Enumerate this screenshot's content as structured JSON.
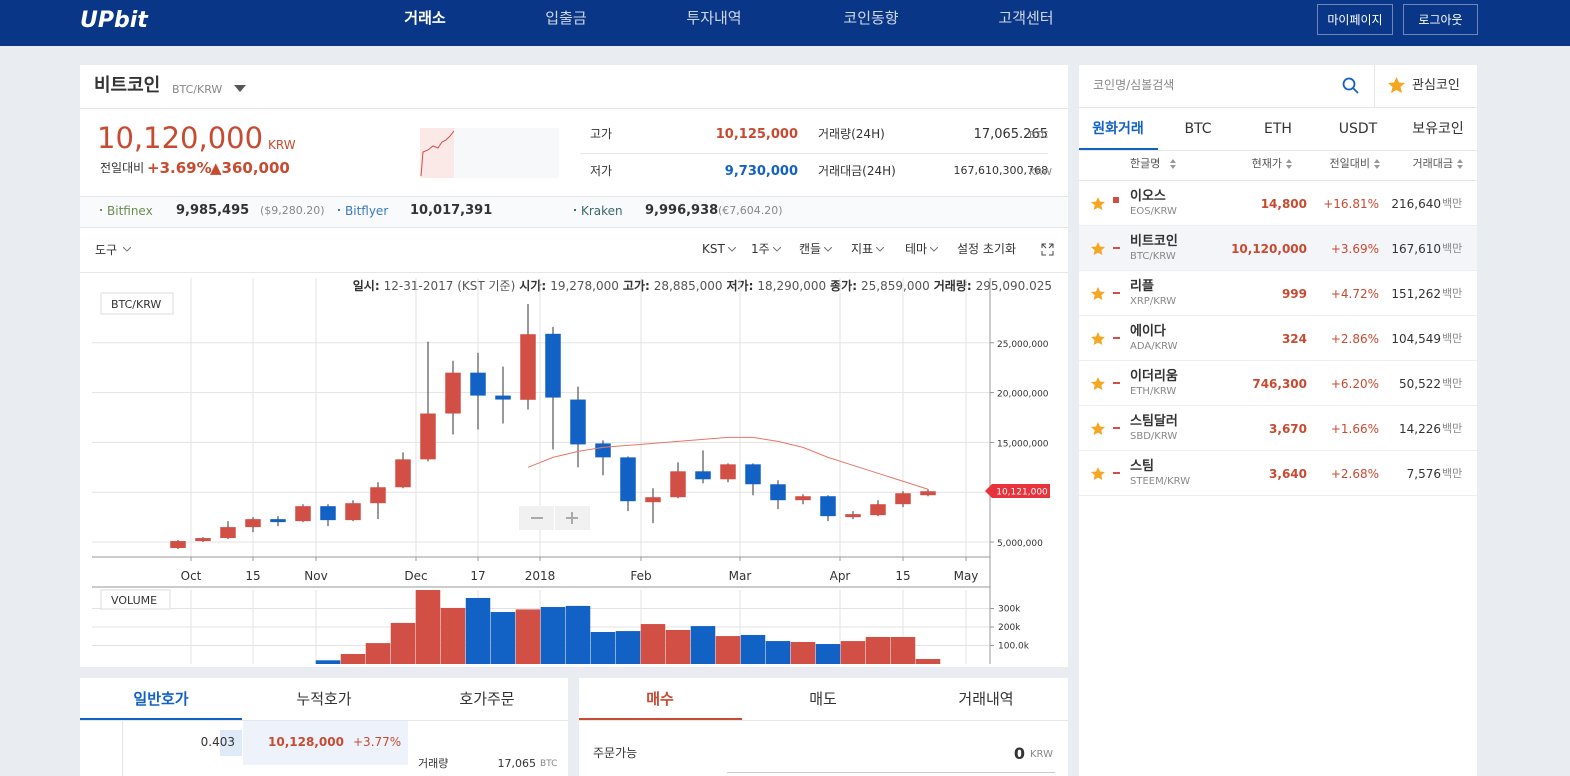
{
  "header": {
    "logo": "UPbit",
    "nav": [
      "거래소",
      "입출금",
      "투자내역",
      "코인동향",
      "고객센터"
    ],
    "buttons": [
      "마이페이지",
      "로그아웃"
    ]
  },
  "ticker": {
    "name": "비트코인",
    "pair": "BTC/KRW",
    "price": "10,120,000",
    "unit": "KRW",
    "change_label": "전일대비",
    "change_pct": "+3.69%",
    "change_amt": "▲360,000",
    "stats": [
      {
        "label": "고가",
        "value": "10,125,000"
      },
      {
        "label": "저가",
        "value": "9,730,000"
      },
      {
        "label": "거래량(24H)",
        "value": "17,065.265",
        "unit": "BTC"
      },
      {
        "label": "거래대금(24H)",
        "value": "167,610,300,768",
        "unit": "KRW"
      }
    ]
  },
  "exchanges": [
    {
      "name": "Bitfinex",
      "price": "9,985,495",
      "foreign": "($9,280.20)"
    },
    {
      "name": "Bitflyer",
      "price": "10,017,391"
    },
    {
      "name": "Kraken",
      "price": "9,996,938",
      "foreign": "(€7,604.20)"
    }
  ],
  "toolbar": {
    "tools": "도구",
    "options": [
      "KST",
      "1주",
      "캔들",
      "지표",
      "테마"
    ],
    "reset": "설정 초기화"
  },
  "chart_info": [
    {
      "label": "일시:",
      "value": "12-31-2017 (KST 기준)"
    },
    {
      "label": "시가:",
      "value": "19,278,000"
    },
    {
      "label": "고가:",
      "value": "28,885,000"
    },
    {
      "label": "저가:",
      "value": "18,290,000"
    },
    {
      "label": "종가:",
      "value": "25,859,000"
    },
    {
      "label": "거래량:",
      "value": "295,090.025"
    }
  ],
  "chart_data": {
    "type": "candlestick",
    "title": "BTC/KRW",
    "volume_title": "VOLUME",
    "x": [
      0,
      1,
      2,
      3,
      4,
      5,
      6,
      7,
      8,
      9,
      10,
      11,
      12,
      13,
      14,
      15,
      16,
      17,
      18,
      19,
      20,
      21,
      22,
      23,
      24,
      25,
      26,
      27,
      28,
      29,
      30
    ],
    "open": [
      4400000,
      5100000,
      5400000,
      6500000,
      7300000,
      7100000,
      8600000,
      7200000,
      8900000,
      10500000,
      13300000,
      17900000,
      22000000,
      19700000,
      19278000,
      25900000,
      19300000,
      14900000,
      13500000,
      9000000,
      9500000,
      12100000,
      11300000,
      12800000,
      10800000,
      9200000,
      9600000,
      7500000,
      7700000,
      8800000,
      9700000
    ],
    "high": [
      5200000,
      5500000,
      7100000,
      7500000,
      7600000,
      8800000,
      8800000,
      9200000,
      11000000,
      14000000,
      25100000,
      23200000,
      24000000,
      22600000,
      28885000,
      26600000,
      20600000,
      15200000,
      13600000,
      10400000,
      13000000,
      14200000,
      12900000,
      12900000,
      11200000,
      9800000,
      9700000,
      8100000,
      9200000,
      10100000,
      10300000
    ],
    "low": [
      4300000,
      5000000,
      5300000,
      6000000,
      6600000,
      7000000,
      6600000,
      7100000,
      7300000,
      10400000,
      13100000,
      15800000,
      16300000,
      16900000,
      18290000,
      14300000,
      12500000,
      11700000,
      8100000,
      6900000,
      9400000,
      10900000,
      11000000,
      9700000,
      8300000,
      8800000,
      7100000,
      7300000,
      7600000,
      8500000,
      9600000
    ],
    "close": [
      5100000,
      5400000,
      6500000,
      7300000,
      7000000,
      8600000,
      7200000,
      8900000,
      10500000,
      13300000,
      17900000,
      22000000,
      19700000,
      19300000,
      25859000,
      19500000,
      14800000,
      13500000,
      9100000,
      9500000,
      12100000,
      11300000,
      12800000,
      10800000,
      9200000,
      9600000,
      7600000,
      7800000,
      8800000,
      9900000,
      10100000
    ],
    "ma": [
      null,
      null,
      null,
      null,
      null,
      null,
      null,
      null,
      null,
      null,
      null,
      null,
      null,
      null,
      12500000,
      13500000,
      14100000,
      14500000,
      14700000,
      14900000,
      15100000,
      15300000,
      15500000,
      15500000,
      15100000,
      14500000,
      13500000,
      12700000,
      11900000,
      11100000,
      10300000
    ],
    "volume": [
      null,
      null,
      null,
      null,
      null,
      null,
      20000,
      54000,
      113000,
      222000,
      400000,
      303000,
      357000,
      281000,
      295090.025,
      308000,
      314000,
      173000,
      178000,
      216000,
      184000,
      205000,
      151000,
      157000,
      124000,
      119000,
      108000,
      124000,
      146000,
      146000,
      27000
    ],
    "colors": {
      "up": "#d24f45",
      "down": "#1261c4",
      "ma": "#e8766a"
    },
    "xlim": [
      -3.44,
      32.48
    ],
    "xticks": [
      {
        "value": 0.52,
        "label": "Oct"
      },
      {
        "value": 3,
        "label": "15"
      },
      {
        "value": 5.52,
        "label": "Nov"
      },
      {
        "value": 9.52,
        "label": "Dec"
      },
      {
        "value": 12,
        "label": "17"
      },
      {
        "value": 14.48,
        "label": "2018"
      },
      {
        "value": 18.52,
        "label": "Feb"
      },
      {
        "value": 22.48,
        "label": "Mar"
      },
      {
        "value": 26.48,
        "label": "Apr"
      },
      {
        "value": 29,
        "label": "15"
      },
      {
        "value": 31.52,
        "label": "May"
      }
    ],
    "ylim": [
      3500000,
      31500000
    ],
    "yticks": [
      {
        "value": 5000000,
        "label": "5,000,000"
      },
      {
        "value": 10000000,
        "label": "10,000,000"
      },
      {
        "value": 15000000,
        "label": "15,000,000"
      },
      {
        "value": 20000000,
        "label": "20,000,000"
      },
      {
        "value": 25000000,
        "label": "25,000,000"
      }
    ],
    "volume_ylim": [
      0,
      400000
    ],
    "volume_yticks": [
      {
        "value": 100000,
        "label": "100.0k"
      },
      {
        "value": 200000,
        "label": "200k"
      },
      {
        "value": 300000,
        "label": "300k"
      }
    ],
    "last_price": {
      "value": 10121000,
      "label": "10,121,000"
    },
    "grid": true
  },
  "market": {
    "search": "코인명/심볼검색",
    "favorites": "관심코인",
    "tabs": [
      "원화거래",
      "BTC",
      "ETH",
      "USDT",
      "보유코인"
    ],
    "columns": [
      "한글명",
      "현재가",
      "전일대비",
      "거래대금"
    ],
    "unit": "백만",
    "rows": [
      {
        "name": "이오스",
        "symbol": "EOS/KRW",
        "price": "14,800",
        "change": "+16.81%",
        "volume": "216,640"
      },
      {
        "name": "비트코인",
        "symbol": "BTC/KRW",
        "price": "10,120,000",
        "change": "+3.69%",
        "volume": "167,610"
      },
      {
        "name": "리플",
        "symbol": "XRP/KRW",
        "price": "999",
        "change": "+4.72%",
        "volume": "151,262"
      },
      {
        "name": "에이다",
        "symbol": "ADA/KRW",
        "price": "324",
        "change": "+2.86%",
        "volume": "104,549"
      },
      {
        "name": "이더리움",
        "symbol": "ETH/KRW",
        "price": "746,300",
        "change": "+6.20%",
        "volume": "50,522"
      },
      {
        "name": "스팀달러",
        "symbol": "SBD/KRW",
        "price": "3,670",
        "change": "+1.66%",
        "volume": "14,226"
      },
      {
        "name": "스팀",
        "symbol": "STEEM/KRW",
        "price": "3,640",
        "change": "+2.68%",
        "volume": "7,576"
      }
    ]
  },
  "orderbook": {
    "tabs": [
      "일반호가",
      "누적호가",
      "호가주문"
    ],
    "qty": "0.403",
    "price": "10,128,000",
    "change": "+3.77%",
    "vol_label": "거래량",
    "vol": "17,065",
    "vol_unit": "BTC"
  },
  "order": {
    "tabs": [
      "매수",
      "매도",
      "거래내역"
    ],
    "available_label": "주문가능",
    "available": "0",
    "unit": "KRW"
  }
}
